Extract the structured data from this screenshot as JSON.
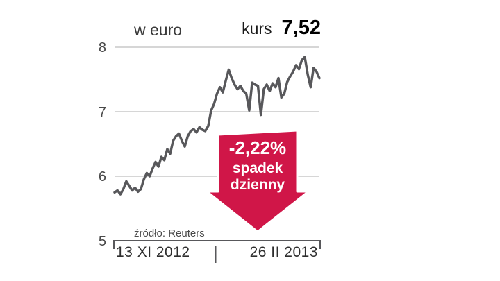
{
  "chart": {
    "unit_label": "w euro",
    "price_label": "kurs",
    "price_value": "7,52",
    "source": "źródło: Reuters",
    "x_start_label": "13 XI 2012",
    "x_end_label": "26 II 2013"
  },
  "annotation": {
    "change": "-2,22%",
    "line1": "spadek",
    "line2": "dzienny",
    "color": "#d01648"
  },
  "chart_data": {
    "type": "line",
    "title": "w euro",
    "xlabel": "",
    "ylabel": "w euro",
    "x_range": [
      "13 XI 2012",
      "26 II 2013"
    ],
    "ylim": [
      5,
      8
    ],
    "yticks": [
      5,
      6,
      7,
      8
    ],
    "grid": true,
    "line_color": "#58585b",
    "last_value": 7.52,
    "daily_change_pct": -2.22,
    "source": "Reuters",
    "series": [
      {
        "name": "kurs",
        "values": [
          5.75,
          5.78,
          5.72,
          5.8,
          5.92,
          5.85,
          5.78,
          5.82,
          5.76,
          5.8,
          5.95,
          6.05,
          6.0,
          6.12,
          6.22,
          6.15,
          6.3,
          6.25,
          6.42,
          6.35,
          6.55,
          6.62,
          6.66,
          6.55,
          6.46,
          6.62,
          6.7,
          6.73,
          6.68,
          6.76,
          6.72,
          6.7,
          6.78,
          7.02,
          7.12,
          7.28,
          7.38,
          7.3,
          7.48,
          7.65,
          7.52,
          7.42,
          7.35,
          7.4,
          7.32,
          7.28,
          7.02,
          7.45,
          7.42,
          7.4,
          6.95,
          7.35,
          7.42,
          7.32,
          7.44,
          7.38,
          7.52,
          7.22,
          7.28,
          7.46,
          7.55,
          7.62,
          7.72,
          7.66,
          7.8,
          7.85,
          7.58,
          7.38,
          7.68,
          7.62,
          7.52
        ]
      }
    ]
  }
}
